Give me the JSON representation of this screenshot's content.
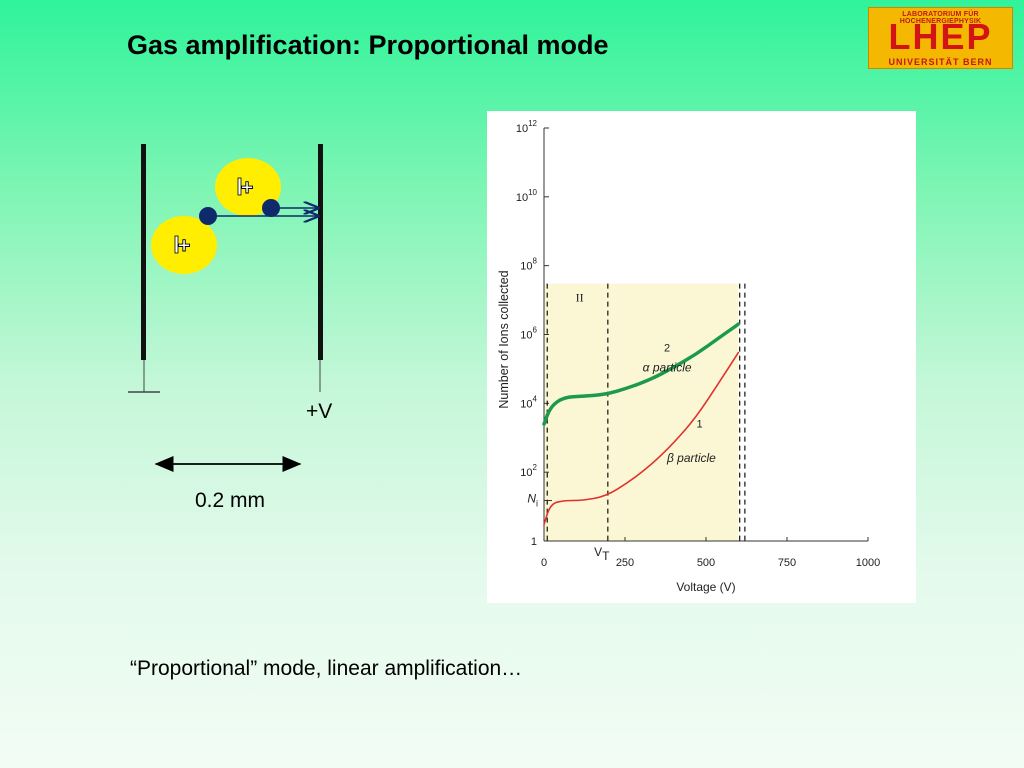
{
  "slide": {
    "title": "Gas amplification: Proportional mode",
    "caption": "“Proportional” mode, linear amplification…"
  },
  "logo": {
    "top_text": "LABORATORIUM FÜR HOCHENERGIEPHYSIK",
    "main_text": "LHEP",
    "bottom_text": "UNIVERSITÄT BERN",
    "colors": {
      "background": "#f5b800",
      "text": "#d41414"
    }
  },
  "detector": {
    "voltage_label": "+V",
    "gap_label": "0.2 mm",
    "ion_symbol": "+",
    "colors": {
      "ion": "#ffee00",
      "electron": "#0e2a6b",
      "electrode": "#111111"
    }
  },
  "chart_data": {
    "type": "line",
    "xlabel": "Voltage (V)",
    "ylabel": "Number of Ions collected",
    "x_ticks": [
      "0",
      "250",
      "500",
      "750",
      "1000"
    ],
    "y_ticks": [
      "1",
      "10^2",
      "10^4",
      "10^6",
      "10^8",
      "10^10",
      "10^12"
    ],
    "y_scale": "log",
    "xlim": [
      0,
      1000
    ],
    "ylim": [
      1,
      1000000000000
    ],
    "region_label": "II",
    "threshold_label": "V_T",
    "ni_label": "N_i",
    "series": [
      {
        "name": "α particle",
        "curve_number": "2",
        "color": "#1a9a4a",
        "x": [
          0,
          20,
          60,
          120,
          190,
          260,
          330,
          400,
          470,
          540,
          600
        ],
        "y": [
          2500,
          8000,
          15000,
          16000,
          18000,
          28000,
          50000,
          110000,
          270000,
          800000,
          2000000
        ]
      },
      {
        "name": "β particle",
        "curve_number": "1",
        "color": "#e03030",
        "x": [
          0,
          20,
          60,
          120,
          190,
          260,
          330,
          400,
          470,
          540,
          600
        ],
        "y": [
          3,
          12,
          15,
          15,
          20,
          50,
          160,
          700,
          4000,
          40000,
          300000
        ]
      }
    ]
  }
}
